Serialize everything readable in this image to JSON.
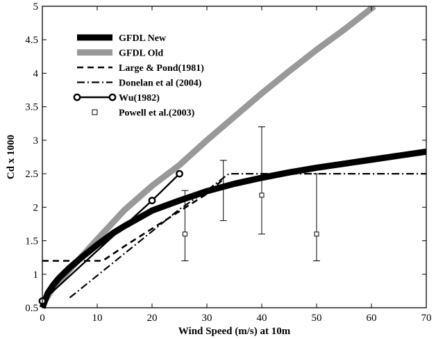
{
  "chart_data": {
    "type": "line",
    "title": "",
    "xlabel": "Wind Speed (m/s) at 10m",
    "ylabel": "Cd x 1000",
    "xlim": [
      0,
      70
    ],
    "ylim": [
      0.5,
      5
    ],
    "xticks": [
      "0",
      "10",
      "20",
      "30",
      "40",
      "50",
      "60",
      "70"
    ],
    "yticks": [
      "0.5",
      "1",
      "1.5",
      "2",
      "2.5",
      "3",
      "3.5",
      "4",
      "4.5",
      "5"
    ],
    "grid": false,
    "legend_position": "top-left",
    "series": [
      {
        "name": "GFDL New",
        "style": "thick-solid",
        "color": "#000000",
        "x": [
          0,
          1,
          2,
          3,
          5,
          7,
          10,
          13,
          15,
          20,
          25,
          30,
          35,
          40,
          45,
          50,
          55,
          60,
          65,
          70
        ],
        "y": [
          0.5,
          0.72,
          0.84,
          0.94,
          1.1,
          1.24,
          1.44,
          1.62,
          1.72,
          1.95,
          2.1,
          2.24,
          2.35,
          2.44,
          2.52,
          2.59,
          2.65,
          2.71,
          2.77,
          2.83
        ]
      },
      {
        "name": "GFDL Old",
        "style": "thick-solid",
        "color": "#999999",
        "x": [
          0,
          2,
          5,
          10,
          15,
          20,
          25,
          30,
          35,
          40,
          45,
          50,
          55,
          60.5
        ],
        "y": [
          0.55,
          0.8,
          1.07,
          1.52,
          1.96,
          2.32,
          2.63,
          3.0,
          3.35,
          3.7,
          4.03,
          4.35,
          4.65,
          5.0
        ]
      },
      {
        "name": "Large & Pond(1981)",
        "style": "dashed",
        "color": "#000000",
        "x": [
          0,
          11,
          15,
          20,
          25,
          30,
          33
        ],
        "y": [
          1.2,
          1.2,
          1.42,
          1.68,
          1.94,
          2.2,
          2.42
        ]
      },
      {
        "name": "Donelan et al (2004)",
        "style": "dash-dot",
        "color": "#000000",
        "x": [
          5,
          10,
          15,
          20,
          25,
          30,
          34,
          40,
          50,
          60,
          70
        ],
        "y": [
          0.65,
          0.98,
          1.31,
          1.64,
          1.97,
          2.25,
          2.5,
          2.5,
          2.5,
          2.5,
          2.5
        ]
      },
      {
        "name": "Wu(1982)",
        "style": "solid-circle-markers",
        "color": "#000000",
        "x": [
          0,
          20,
          25
        ],
        "y": [
          0.6,
          2.1,
          2.5
        ]
      },
      {
        "name": "Powell et al.(2003)",
        "style": "square-markers-with-errorbars",
        "color": "#000000",
        "x": [
          26,
          33,
          40,
          50
        ],
        "y": [
          1.6,
          2.25,
          2.18,
          1.6
        ],
        "y_low": [
          1.2,
          1.8,
          1.6,
          1.2
        ],
        "y_high": [
          2.25,
          2.7,
          3.2,
          2.5
        ],
        "marker_shown": [
          true,
          false,
          true,
          true
        ]
      }
    ]
  }
}
